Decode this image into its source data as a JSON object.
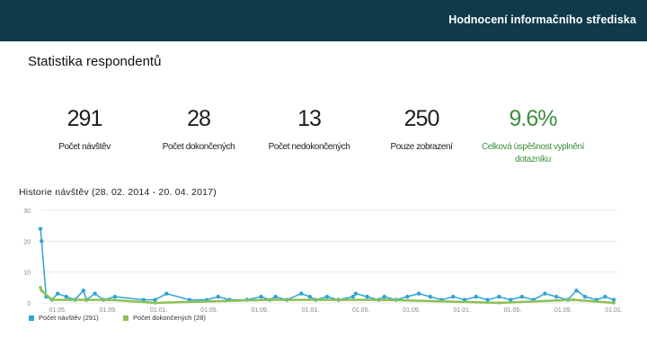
{
  "header": {
    "title": "Hodnocení informačního střediska"
  },
  "page": {
    "heading": "Statistika respondentů"
  },
  "stats": [
    {
      "value": "291",
      "label": "Počet návštěv"
    },
    {
      "value": "28",
      "label": "Počet dokončených"
    },
    {
      "value": "13",
      "label": "Počet nedokončených"
    },
    {
      "value": "250",
      "label": "Pouze zobrazení"
    },
    {
      "value": "9.6%",
      "label": "Celková úspěšnost vyplnění dotazníku"
    }
  ],
  "history": {
    "title": "Historie návštěv (28. 02. 2014 - 20. 04. 2017)"
  },
  "colors": {
    "header_bg": "#0e3a4a",
    "visits": "#2ea3d6",
    "completed": "#8cc152",
    "highlight": "#3c8f3c"
  },
  "chart_data": {
    "type": "line",
    "ylim": [
      0,
      30
    ],
    "y_ticks": [
      "30",
      "20",
      "10",
      "0"
    ],
    "x_ticks": [
      "01.05.",
      "01.09.",
      "01.01.",
      "01.05.",
      "01.09.",
      "01.01.",
      "01.05.",
      "01.09.",
      "01.01.",
      "01.05.",
      "01.09.",
      "01.01."
    ],
    "legend": [
      {
        "label": "Počet návštěv (291)",
        "color": "#2ea3d6"
      },
      {
        "label": "Počet dokončených (28)",
        "color": "#8cc152"
      }
    ],
    "series": [
      {
        "name": "Počet návštěv (291)",
        "points": [
          [
            0.0,
            24
          ],
          [
            0.002,
            20
          ],
          [
            0.01,
            2
          ],
          [
            0.02,
            1
          ],
          [
            0.03,
            3
          ],
          [
            0.045,
            2
          ],
          [
            0.06,
            1
          ],
          [
            0.075,
            4
          ],
          [
            0.08,
            1
          ],
          [
            0.095,
            3
          ],
          [
            0.11,
            1
          ],
          [
            0.13,
            2
          ],
          [
            0.18,
            1
          ],
          [
            0.2,
            1
          ],
          [
            0.22,
            3
          ],
          [
            0.26,
            1
          ],
          [
            0.29,
            1
          ],
          [
            0.31,
            2
          ],
          [
            0.33,
            1
          ],
          [
            0.36,
            1
          ],
          [
            0.385,
            2
          ],
          [
            0.4,
            1
          ],
          [
            0.41,
            2
          ],
          [
            0.43,
            1
          ],
          [
            0.455,
            3
          ],
          [
            0.47,
            2
          ],
          [
            0.48,
            1
          ],
          [
            0.5,
            2
          ],
          [
            0.52,
            1
          ],
          [
            0.545,
            2
          ],
          [
            0.55,
            3
          ],
          [
            0.57,
            2
          ],
          [
            0.59,
            1
          ],
          [
            0.6,
            2
          ],
          [
            0.62,
            1
          ],
          [
            0.64,
            2
          ],
          [
            0.66,
            3
          ],
          [
            0.68,
            2
          ],
          [
            0.7,
            1
          ],
          [
            0.72,
            2
          ],
          [
            0.74,
            1
          ],
          [
            0.76,
            2
          ],
          [
            0.78,
            1
          ],
          [
            0.8,
            2
          ],
          [
            0.82,
            1
          ],
          [
            0.84,
            2
          ],
          [
            0.86,
            1
          ],
          [
            0.88,
            3
          ],
          [
            0.9,
            2
          ],
          [
            0.92,
            1
          ],
          [
            0.935,
            4
          ],
          [
            0.95,
            2
          ],
          [
            0.97,
            1
          ],
          [
            0.985,
            2
          ],
          [
            1.0,
            1
          ]
        ]
      },
      {
        "name": "Počet dokončených (28)",
        "points": [
          [
            0.0,
            5
          ],
          [
            0.002,
            4
          ],
          [
            0.02,
            1
          ],
          [
            0.12,
            1
          ],
          [
            0.2,
            0
          ],
          [
            0.4,
            1
          ],
          [
            0.6,
            1
          ],
          [
            0.8,
            0
          ],
          [
            0.93,
            1
          ],
          [
            1.0,
            0
          ]
        ]
      }
    ]
  }
}
